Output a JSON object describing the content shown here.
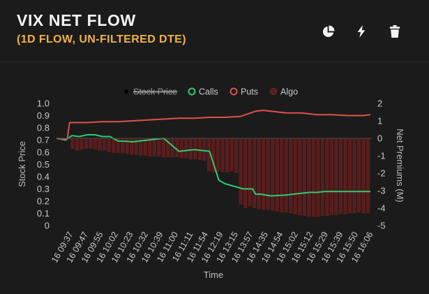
{
  "header": {
    "title": "VIX NET FLOW",
    "subtitle": "(1D FLOW, UN-FILTERED DTE)",
    "icons": [
      "pie-chart-icon",
      "lightning-icon",
      "trash-icon"
    ]
  },
  "colors": {
    "background": "#1b1b1b",
    "accent": "#f0b24a",
    "calls": "#2ecc71",
    "puts": "#e0504a",
    "algo": "#5a1d1d",
    "stock_price": "#000000",
    "text": "#cccccc"
  },
  "chart_data": {
    "type": "line",
    "xlabel": "Time",
    "ylabel_left": "Stock Price",
    "ylabel_right": "Net Premiums (M)",
    "yticks_left": [
      "1.0",
      "0.9",
      "0.8",
      "0.7",
      "0.6",
      "0.5",
      "0.4",
      "0.3",
      "0.2",
      "0.1",
      "0"
    ],
    "yticks_right": [
      "2",
      "1",
      "0",
      "-1",
      "-2",
      "-3",
      "-4",
      "-5"
    ],
    "ylim_left": [
      0,
      1
    ],
    "ylim_right": [
      -5,
      2
    ],
    "xticks": [
      "16 09:37",
      "16 09:47",
      "16 09:55",
      "16 10:02",
      "16 10:23",
      "16 10:32",
      "16 10:39",
      "16 11:00",
      "16 11:11",
      "16 11:54",
      "16 12:19",
      "16 13:15",
      "16 13:57",
      "16 14:35",
      "16 14:54",
      "16 15:02",
      "16 15:12",
      "16 15:29",
      "16 15:39",
      "16 15:50",
      "16 16:06"
    ],
    "legend": [
      {
        "name": "Stock Price",
        "color": "#000000",
        "hidden": true
      },
      {
        "name": "Calls",
        "color": "#2ecc71",
        "hidden": false
      },
      {
        "name": "Puts",
        "color": "#e0504a",
        "hidden": false
      },
      {
        "name": "Algo",
        "color": "#5a1d1d",
        "hidden": false
      }
    ],
    "legend_position": "top",
    "series": [
      {
        "name": "Calls",
        "axis": "right",
        "x": [
          0,
          0.6,
          1,
          1.5,
          2,
          2.5,
          3,
          3.5,
          4,
          5,
          6,
          7,
          8,
          9,
          10,
          10.6,
          11,
          12,
          12.2,
          12.5,
          12.8,
          13,
          13.3,
          14,
          15,
          15.5,
          16,
          16.5,
          17,
          17.5,
          18,
          19,
          20,
          20.5
        ],
        "values": [
          0,
          -0.1,
          0.15,
          0.1,
          0.2,
          0.2,
          0.1,
          0.1,
          -0.15,
          -0.2,
          -0.1,
          0.0,
          -0.75,
          -0.65,
          -0.75,
          -2.4,
          -2.6,
          -2.85,
          -2.9,
          -2.9,
          -2.9,
          -3.2,
          -3.2,
          -3.3,
          -3.25,
          -3.2,
          -3.15,
          -3.1,
          -3.1,
          -3.05,
          -3.05,
          -3.05,
          -3.05,
          -3.05
        ]
      },
      {
        "name": "Puts",
        "axis": "right",
        "x": [
          0,
          0.7,
          0.85,
          1,
          2,
          3,
          4,
          5,
          6,
          7,
          8,
          9,
          10,
          11,
          12,
          13,
          13.5,
          14,
          15,
          15.5,
          16,
          17,
          18,
          19,
          20,
          20.5
        ],
        "values": [
          0,
          -0.05,
          0.9,
          0.9,
          0.9,
          0.95,
          0.95,
          1.0,
          1.05,
          1.1,
          1.15,
          1.15,
          1.2,
          1.2,
          1.25,
          1.55,
          1.6,
          1.55,
          1.45,
          1.45,
          1.45,
          1.35,
          1.35,
          1.3,
          1.3,
          1.35
        ]
      },
      {
        "name": "Algo",
        "axis": "right",
        "type": "bar",
        "values": [
          -0.6,
          -0.7,
          -0.65,
          -0.6,
          -0.6,
          -0.65,
          -0.7,
          -0.7,
          -0.8,
          -0.85,
          -0.85,
          -0.85,
          -0.9,
          -0.95,
          -0.95,
          -1.0,
          -1.0,
          -1.05,
          -1.05,
          -1.05,
          -1.1,
          -1.1,
          -1.1,
          -1.1,
          -1.15,
          -1.15,
          -1.2,
          -1.2,
          -1.25,
          -1.3,
          -1.9,
          -1.95,
          -1.9,
          -1.95,
          -1.95,
          -1.9,
          -2.0,
          -3.8,
          -4.0,
          -3.9,
          -4.0,
          -4.05,
          -4.1,
          -4.1,
          -4.15,
          -4.2,
          -4.25,
          -4.25,
          -4.3,
          -4.35,
          -4.4,
          -4.45,
          -4.5,
          -4.5,
          -4.5,
          -4.45,
          -4.45,
          -4.4,
          -4.4,
          -4.35,
          -4.35,
          -4.3,
          -4.3,
          -4.25,
          -4.3,
          -4.3
        ]
      }
    ]
  }
}
